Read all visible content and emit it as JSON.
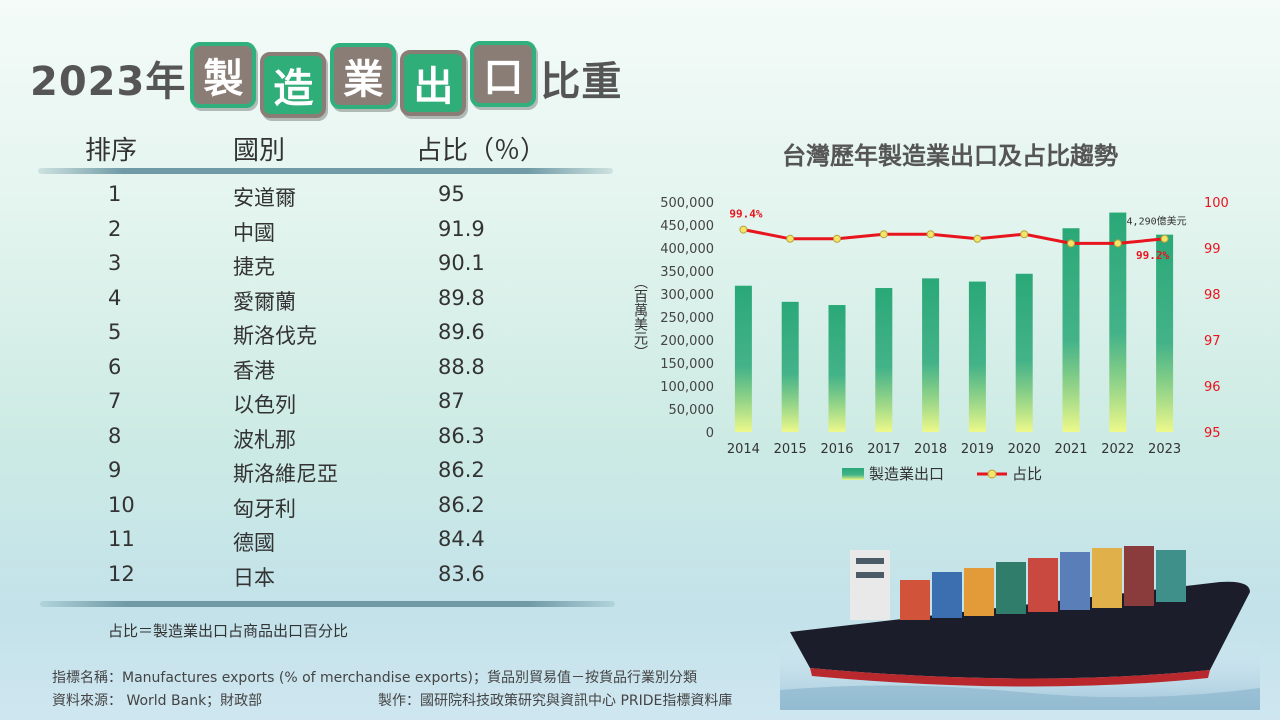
{
  "title": {
    "prefix": "2023年",
    "tiles": [
      "製",
      "造",
      "業",
      "出",
      "口"
    ],
    "suffix": "比重"
  },
  "table": {
    "headers": {
      "rank": "排序",
      "country": "國別",
      "share": "占比（％）"
    },
    "rows": [
      {
        "rank": "1",
        "country": "安道爾",
        "share": "95"
      },
      {
        "rank": "2",
        "country": "中國",
        "share": "91.9"
      },
      {
        "rank": "3",
        "country": "捷克",
        "share": "90.1"
      },
      {
        "rank": "4",
        "country": "愛爾蘭",
        "share": "89.8"
      },
      {
        "rank": "5",
        "country": "斯洛伐克",
        "share": "89.6"
      },
      {
        "rank": "6",
        "country": "香港",
        "share": "88.8"
      },
      {
        "rank": "7",
        "country": "以色列",
        "share": "87"
      },
      {
        "rank": "8",
        "country": "波札那",
        "share": "86.3"
      },
      {
        "rank": "9",
        "country": "斯洛維尼亞",
        "share": "86.2"
      },
      {
        "rank": "10",
        "country": "匈牙利",
        "share": "86.2"
      },
      {
        "rank": "11",
        "country": "德國",
        "share": "84.4"
      },
      {
        "rank": "12",
        "country": "日本",
        "share": "83.6"
      }
    ]
  },
  "note": "占比＝製造業出口占商品出口百分比",
  "footer": {
    "indicator": "指標名稱：Manufactures exports (% of merchandise exports)；貨品別貿易值－按貨品行業別分類",
    "source": "資料來源： World Bank；財政部",
    "producer": "製作：國研院科技政策研究與資訊中心 PRIDE指標資料庫"
  },
  "colors": {
    "bar_top": "#2aa878",
    "bar_bottom": "#eef98a",
    "line": "#e8141e",
    "marker_fill": "#f2e66a",
    "right_axis_text": "#e8141e",
    "title_tile_gray": "#8a7d76",
    "title_tile_green": "#2fae79"
  },
  "chart_data": {
    "type": "bar+line",
    "title": "台灣歷年製造業出口及占比趨勢",
    "categories": [
      "2014",
      "2015",
      "2016",
      "2017",
      "2018",
      "2019",
      "2020",
      "2021",
      "2022",
      "2023"
    ],
    "series": [
      {
        "name": "製造業出口",
        "type": "bar",
        "axis": "left",
        "values": [
          318000,
          283000,
          276000,
          313000,
          334000,
          327000,
          344000,
          443000,
          477000,
          429000
        ]
      },
      {
        "name": "占比",
        "type": "line",
        "axis": "right",
        "values": [
          99.4,
          99.2,
          99.2,
          99.3,
          99.3,
          99.2,
          99.3,
          99.1,
          99.1,
          99.2
        ]
      }
    ],
    "y_left": {
      "label": "（百萬美元）",
      "range": [
        0,
        500000
      ],
      "ticks": [
        "0",
        "50,000",
        "100,000",
        "150,000",
        "200,000",
        "250,000",
        "300,000",
        "350,000",
        "400,000",
        "450,000",
        "500,000"
      ]
    },
    "y_right": {
      "range": [
        95,
        100
      ],
      "ticks": [
        "95",
        "96",
        "97",
        "98",
        "99",
        "100"
      ]
    },
    "annotations": {
      "first_point": "99.4%",
      "last_point": "99.2%",
      "last_bar": "4,290億美元"
    },
    "legend": {
      "position": "bottom"
    },
    "grid": false
  }
}
